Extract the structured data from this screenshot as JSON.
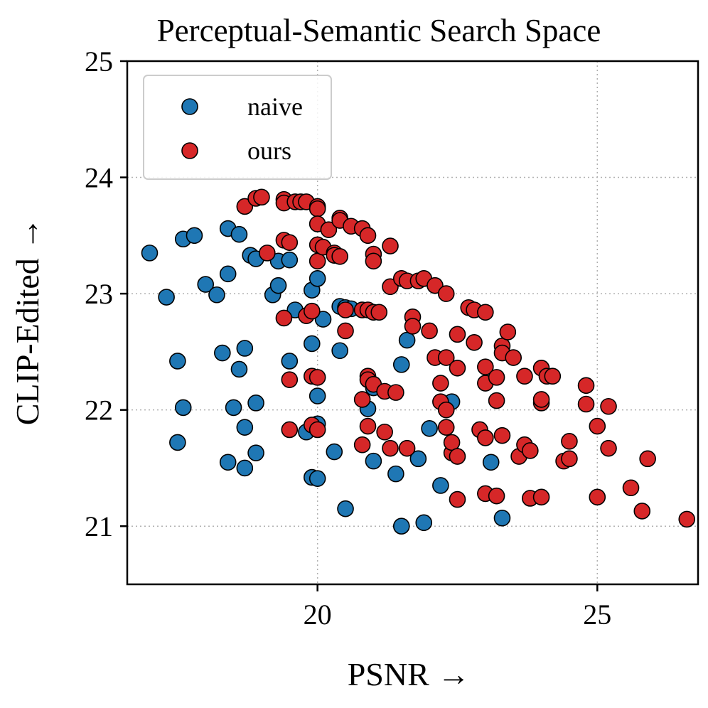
{
  "chart_data": {
    "type": "scatter",
    "title": "Perceptual-Semantic Search Space",
    "xlabel": "PSNR →",
    "ylabel": "CLIP-Edited →",
    "xlim": [
      16.6,
      26.8
    ],
    "ylim": [
      20.5,
      25.0
    ],
    "xticks": [
      20,
      25
    ],
    "yticks": [
      21,
      22,
      23,
      24,
      25
    ],
    "grid": true,
    "legend_position": "upper-left",
    "series": [
      {
        "name": "naive",
        "color": "#1f77b4",
        "points": [
          [
            17.0,
            23.35
          ],
          [
            17.3,
            22.97
          ],
          [
            17.5,
            22.42
          ],
          [
            17.5,
            21.72
          ],
          [
            17.6,
            22.02
          ],
          [
            17.6,
            23.47
          ],
          [
            17.8,
            23.5
          ],
          [
            18.0,
            23.08
          ],
          [
            18.2,
            22.99
          ],
          [
            18.3,
            22.49
          ],
          [
            18.4,
            23.17
          ],
          [
            18.4,
            23.56
          ],
          [
            18.4,
            21.55
          ],
          [
            18.5,
            22.02
          ],
          [
            18.6,
            23.51
          ],
          [
            18.6,
            22.35
          ],
          [
            18.7,
            21.85
          ],
          [
            18.7,
            22.53
          ],
          [
            18.7,
            21.5
          ],
          [
            18.8,
            23.33
          ],
          [
            18.9,
            22.06
          ],
          [
            18.9,
            23.3
          ],
          [
            18.9,
            21.63
          ],
          [
            19.2,
            22.99
          ],
          [
            19.3,
            23.07
          ],
          [
            19.3,
            23.28
          ],
          [
            19.5,
            23.29
          ],
          [
            19.5,
            22.42
          ],
          [
            19.6,
            22.86
          ],
          [
            19.8,
            21.81
          ],
          [
            19.9,
            21.42
          ],
          [
            19.9,
            22.57
          ],
          [
            19.9,
            23.03
          ],
          [
            20.0,
            21.88
          ],
          [
            20.0,
            22.12
          ],
          [
            20.0,
            23.13
          ],
          [
            20.0,
            21.41
          ],
          [
            20.1,
            22.78
          ],
          [
            20.3,
            21.64
          ],
          [
            20.4,
            22.89
          ],
          [
            20.4,
            22.51
          ],
          [
            20.5,
            21.15
          ],
          [
            20.5,
            22.88
          ],
          [
            20.6,
            22.87
          ],
          [
            20.9,
            22.01
          ],
          [
            21.0,
            21.56
          ],
          [
            21.0,
            22.19
          ],
          [
            21.4,
            21.45
          ],
          [
            21.5,
            22.39
          ],
          [
            21.5,
            21.0
          ],
          [
            21.6,
            22.6
          ],
          [
            21.8,
            21.58
          ],
          [
            21.9,
            21.03
          ],
          [
            22.0,
            21.84
          ],
          [
            22.2,
            21.35
          ],
          [
            22.4,
            22.07
          ],
          [
            23.1,
            21.55
          ],
          [
            23.3,
            21.07
          ]
        ]
      },
      {
        "name": "ours",
        "color": "#d62728",
        "points": [
          [
            18.7,
            23.75
          ],
          [
            18.9,
            23.82
          ],
          [
            19.0,
            23.83
          ],
          [
            19.1,
            23.35
          ],
          [
            19.4,
            23.81
          ],
          [
            19.4,
            23.78
          ],
          [
            19.4,
            23.46
          ],
          [
            19.5,
            23.44
          ],
          [
            19.4,
            22.79
          ],
          [
            19.5,
            22.26
          ],
          [
            19.5,
            21.83
          ],
          [
            19.6,
            23.79
          ],
          [
            19.7,
            23.79
          ],
          [
            19.8,
            23.79
          ],
          [
            19.8,
            22.81
          ],
          [
            19.9,
            22.85
          ],
          [
            19.9,
            22.29
          ],
          [
            19.9,
            21.87
          ],
          [
            20.0,
            23.75
          ],
          [
            20.0,
            23.73
          ],
          [
            20.0,
            23.6
          ],
          [
            20.0,
            23.42
          ],
          [
            20.0,
            23.28
          ],
          [
            20.0,
            22.28
          ],
          [
            20.0,
            21.83
          ],
          [
            20.1,
            23.4
          ],
          [
            20.2,
            23.55
          ],
          [
            20.3,
            23.35
          ],
          [
            20.3,
            23.33
          ],
          [
            20.4,
            23.65
          ],
          [
            20.4,
            23.63
          ],
          [
            20.4,
            23.32
          ],
          [
            20.5,
            22.86
          ],
          [
            20.5,
            22.68
          ],
          [
            20.6,
            23.58
          ],
          [
            20.8,
            23.56
          ],
          [
            20.8,
            22.86
          ],
          [
            20.8,
            22.09
          ],
          [
            20.8,
            21.7
          ],
          [
            20.9,
            23.5
          ],
          [
            20.9,
            22.86
          ],
          [
            20.9,
            22.29
          ],
          [
            20.9,
            21.86
          ],
          [
            20.9,
            22.26
          ],
          [
            21.0,
            23.34
          ],
          [
            21.0,
            23.28
          ],
          [
            21.0,
            22.84
          ],
          [
            21.0,
            22.22
          ],
          [
            21.1,
            22.84
          ],
          [
            21.2,
            21.81
          ],
          [
            21.2,
            22.16
          ],
          [
            21.3,
            23.41
          ],
          [
            21.3,
            23.06
          ],
          [
            21.3,
            21.67
          ],
          [
            21.4,
            22.15
          ],
          [
            21.5,
            23.13
          ],
          [
            21.6,
            23.11
          ],
          [
            21.6,
            21.67
          ],
          [
            21.7,
            22.8
          ],
          [
            21.7,
            22.72
          ],
          [
            21.8,
            23.11
          ],
          [
            21.9,
            23.13
          ],
          [
            22.0,
            22.68
          ],
          [
            22.1,
            23.07
          ],
          [
            22.1,
            22.45
          ],
          [
            22.2,
            22.23
          ],
          [
            22.2,
            22.07
          ],
          [
            22.3,
            23.0
          ],
          [
            22.3,
            22.45
          ],
          [
            22.3,
            22.0
          ],
          [
            22.3,
            21.85
          ],
          [
            22.4,
            21.63
          ],
          [
            22.4,
            21.72
          ],
          [
            22.5,
            22.65
          ],
          [
            22.5,
            22.36
          ],
          [
            22.5,
            21.6
          ],
          [
            22.5,
            21.23
          ],
          [
            22.7,
            22.88
          ],
          [
            22.8,
            22.58
          ],
          [
            22.8,
            22.86
          ],
          [
            22.9,
            21.83
          ],
          [
            23.0,
            22.84
          ],
          [
            23.0,
            22.37
          ],
          [
            23.0,
            22.23
          ],
          [
            23.0,
            21.76
          ],
          [
            23.0,
            21.28
          ],
          [
            23.2,
            21.26
          ],
          [
            23.2,
            22.28
          ],
          [
            23.2,
            22.08
          ],
          [
            23.3,
            22.55
          ],
          [
            23.3,
            22.49
          ],
          [
            23.3,
            21.78
          ],
          [
            23.4,
            22.67
          ],
          [
            23.5,
            22.45
          ],
          [
            23.6,
            21.6
          ],
          [
            23.7,
            21.7
          ],
          [
            23.7,
            22.29
          ],
          [
            23.8,
            21.65
          ],
          [
            23.8,
            21.24
          ],
          [
            24.0,
            22.36
          ],
          [
            24.0,
            22.06
          ],
          [
            24.0,
            21.25
          ],
          [
            24.0,
            22.09
          ],
          [
            24.1,
            22.29
          ],
          [
            24.2,
            22.29
          ],
          [
            24.4,
            21.56
          ],
          [
            24.5,
            21.58
          ],
          [
            24.5,
            21.73
          ],
          [
            24.8,
            22.21
          ],
          [
            24.8,
            22.05
          ],
          [
            25.0,
            21.86
          ],
          [
            25.0,
            21.25
          ],
          [
            25.2,
            22.03
          ],
          [
            25.2,
            21.67
          ],
          [
            25.6,
            21.33
          ],
          [
            25.8,
            21.13
          ],
          [
            25.9,
            21.58
          ],
          [
            26.6,
            21.06
          ]
        ]
      }
    ]
  }
}
